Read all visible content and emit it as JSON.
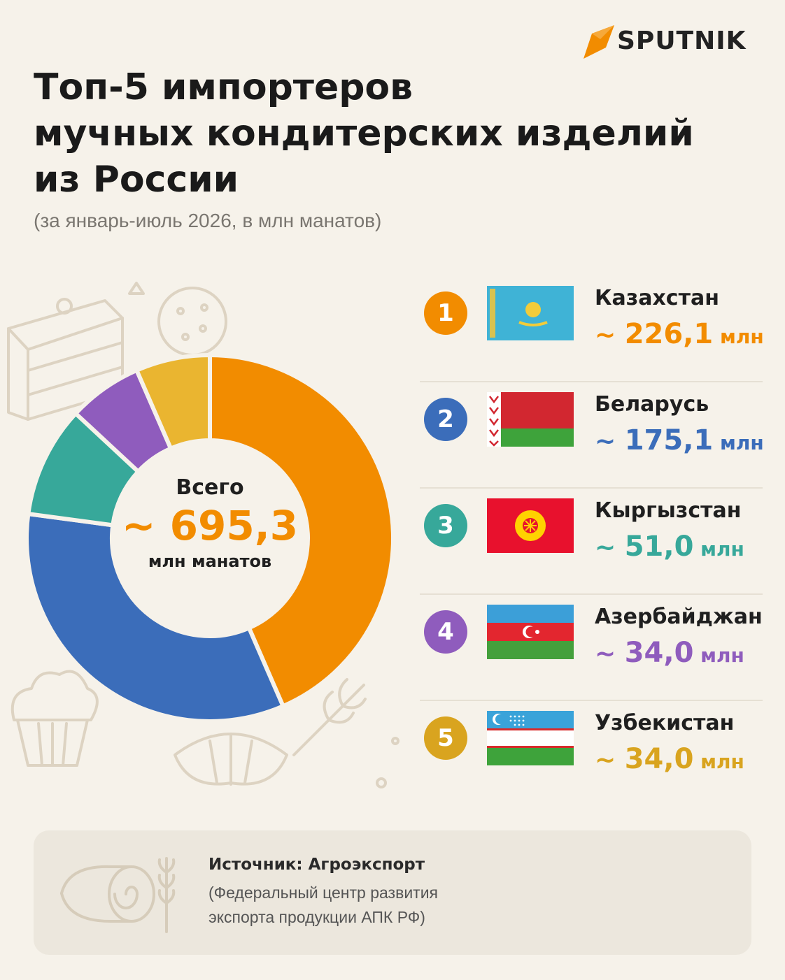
{
  "brand": {
    "name": "SPUTNIK",
    "accent": "#f28c00"
  },
  "header": {
    "title_lines": [
      "Топ-5 импортеров",
      "мучных кондитерских изделий",
      "из России"
    ],
    "subtitle": "(за январь-июль 2026, в млн манатов)"
  },
  "center": {
    "label": "Всего",
    "value": "~ 695,3",
    "unit": "млн манатов"
  },
  "chart_data": {
    "type": "pie",
    "title": "Топ-5 импортеров мучных кондитерских изделий из России",
    "subtitle": "(за январь-июль 2026, в млн манатов)",
    "total": 695.3,
    "categories": [
      "Казахстан",
      "Беларусь",
      "Кыргызстан",
      "Азербайджан",
      "Узбекистан"
    ],
    "values": [
      226.1,
      175.1,
      51.0,
      34.0,
      34.0
    ],
    "colors": [
      "#f28c00",
      "#3b6dba",
      "#37a89a",
      "#8f5cbd",
      "#eab530"
    ]
  },
  "items": [
    {
      "rank": "1",
      "country": "Казахстан",
      "tilde": "~ ",
      "value": "226,1",
      "unit": " млн",
      "color": "#f28c00",
      "flag": "kazakhstan-flag"
    },
    {
      "rank": "2",
      "country": "Беларусь",
      "tilde": "~ ",
      "value": "175,1",
      "unit": " млн",
      "color": "#3b6dba",
      "flag": "belarus-flag"
    },
    {
      "rank": "3",
      "country": "Кыргызстан",
      "tilde": "~ ",
      "value": "51,0",
      "unit": " млн",
      "color": "#37a89a",
      "flag": "kyrgyzstan-flag"
    },
    {
      "rank": "4",
      "country": "Азербайджан",
      "tilde": "~ ",
      "value": "34,0",
      "unit": " млн",
      "color": "#8f5cbd",
      "flag": "azerbaijan-flag"
    },
    {
      "rank": "5",
      "country": "Узбекистан",
      "tilde": "~ ",
      "value": "34,0",
      "unit": " млн",
      "color": "#d9a41f",
      "flag": "uzbekistan-flag"
    }
  ],
  "source": {
    "title": "Источник: Агроэкспорт",
    "line2": "(Федеральный центр развития",
    "line3": "экспорта продукции АПК РФ)"
  }
}
